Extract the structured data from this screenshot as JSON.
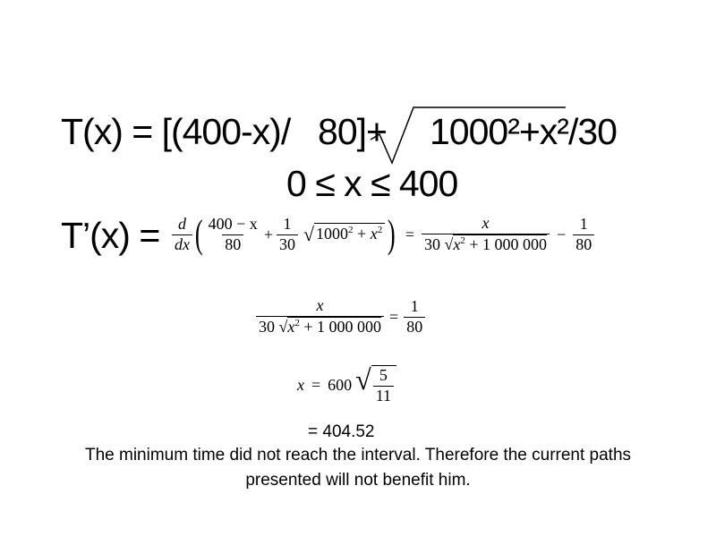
{
  "line1": {
    "prefix": "T(x) = [(400-x)/",
    "mid": "80]+",
    "radicand": "1000²+x²/30"
  },
  "constraint": "0 ≤ x ≤ 400",
  "derivative": {
    "label": "T’(x) =",
    "d": "d",
    "dx": "dx",
    "f1_num": "400 − x",
    "f1_den": "80",
    "plus": "+",
    "f2_num": "1",
    "f2_den": "30",
    "sq_base": "1000",
    "sq_exp": "2",
    "sq_plus": " + ",
    "sq_x": "x",
    "sq_x_exp": "2",
    "eq": "=",
    "r_num": "x",
    "r_den_coef": "30",
    "r_den_x": "x",
    "r_den_exp": "2",
    "r_den_rest": " + 1 000 000",
    "minus": "−",
    "r2_num": "1",
    "r2_den": "80"
  },
  "equation2": {
    "num": "x",
    "den_coef": "30",
    "den_x": "x",
    "den_exp": "2",
    "den_rest": " + 1 000 000",
    "eq": "=",
    "rhs_num": "1",
    "rhs_den": "80"
  },
  "solution": {
    "lhs": "x",
    "eq": "=",
    "coef": "600",
    "num": "5",
    "den": "11"
  },
  "result": "= 404.52",
  "conclusion_line1": "The minimum time did not reach the interval. Therefore the current paths",
  "conclusion_line2": "presented will not benefit him."
}
